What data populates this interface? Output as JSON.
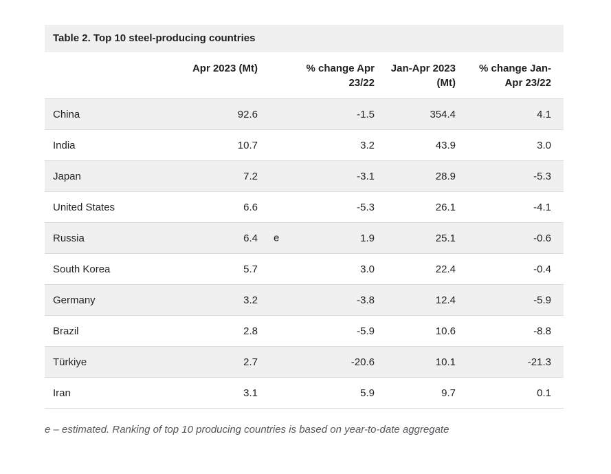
{
  "table": {
    "title": "Table 2. Top 10 steel-producing countries",
    "headers": {
      "country": "",
      "apr": {
        "line1": "Apr 2023 (Mt)",
        "line2": ""
      },
      "chg_apr": {
        "line1": "% change Apr",
        "line2": "23/22"
      },
      "janapr": {
        "line1": "Jan-Apr 2023",
        "line2": "(Mt)"
      },
      "chg_janapr": {
        "line1": "% change Jan-",
        "line2": "Apr 23/22"
      }
    },
    "rows": [
      {
        "country": "China",
        "apr": "92.6",
        "marker": "",
        "chg_apr": "-1.5",
        "janapr": "354.4",
        "chg_janapr": "4.1"
      },
      {
        "country": "India",
        "apr": "10.7",
        "marker": "",
        "chg_apr": "3.2",
        "janapr": "43.9",
        "chg_janapr": "3.0"
      },
      {
        "country": "Japan",
        "apr": "7.2",
        "marker": "",
        "chg_apr": "-3.1",
        "janapr": "28.9",
        "chg_janapr": "-5.3"
      },
      {
        "country": "United States",
        "apr": "6.6",
        "marker": "",
        "chg_apr": "-5.3",
        "janapr": "26.1",
        "chg_janapr": "-4.1"
      },
      {
        "country": "Russia",
        "apr": "6.4",
        "marker": "e",
        "chg_apr": "1.9",
        "janapr": "25.1",
        "chg_janapr": "-0.6"
      },
      {
        "country": "South Korea",
        "apr": "5.7",
        "marker": "",
        "chg_apr": "3.0",
        "janapr": "22.4",
        "chg_janapr": "-0.4"
      },
      {
        "country": "Germany",
        "apr": "3.2",
        "marker": "",
        "chg_apr": "-3.8",
        "janapr": "12.4",
        "chg_janapr": "-5.9"
      },
      {
        "country": "Brazil",
        "apr": "2.8",
        "marker": "",
        "chg_apr": "-5.9",
        "janapr": "10.6",
        "chg_janapr": "-8.8"
      },
      {
        "country": "Türkiye",
        "apr": "2.7",
        "marker": "",
        "chg_apr": "-20.6",
        "janapr": "10.1",
        "chg_janapr": "-21.3"
      },
      {
        "country": "Iran",
        "apr": "3.1",
        "marker": "",
        "chg_apr": "5.9",
        "janapr": "9.7",
        "chg_janapr": "0.1"
      }
    ],
    "footnote": "e – estimated. Ranking of top 10 producing countries is based on year-to-date aggregate"
  },
  "chart_data": {
    "type": "table",
    "title": "Table 2. Top 10 steel-producing countries",
    "columns": [
      "",
      "Apr 2023 (Mt)",
      "% change Apr 23/22",
      "Jan-Apr 2023 (Mt)",
      "% change Jan-Apr 23/22"
    ],
    "rows": [
      [
        "China",
        92.6,
        -1.5,
        354.4,
        4.1
      ],
      [
        "India",
        10.7,
        3.2,
        43.9,
        3.0
      ],
      [
        "Japan",
        7.2,
        -3.1,
        28.9,
        -5.3
      ],
      [
        "United States",
        6.6,
        -5.3,
        26.1,
        -4.1
      ],
      [
        "Russia",
        6.4,
        1.9,
        25.1,
        -0.6
      ],
      [
        "South Korea",
        5.7,
        3.0,
        22.4,
        -0.4
      ],
      [
        "Germany",
        3.2,
        -3.8,
        12.4,
        -5.9
      ],
      [
        "Brazil",
        2.8,
        -5.9,
        10.6,
        -8.8
      ],
      [
        "Türkiye",
        2.7,
        -20.6,
        10.1,
        -21.3
      ],
      [
        "Iran",
        3.1,
        5.9,
        9.7,
        0.1
      ]
    ],
    "markers": [
      {
        "row": "Russia",
        "column": "Apr 2023 (Mt)",
        "marker": "e"
      }
    ],
    "footnote": "e – estimated. Ranking of top 10 producing countries is based on year-to-date aggregate"
  },
  "colors": {
    "stripe": "#f0f0f0",
    "border": "#dcdcdc",
    "titlebar": "#f0f0f0",
    "text": "#232323",
    "footnote": "#55565a"
  }
}
